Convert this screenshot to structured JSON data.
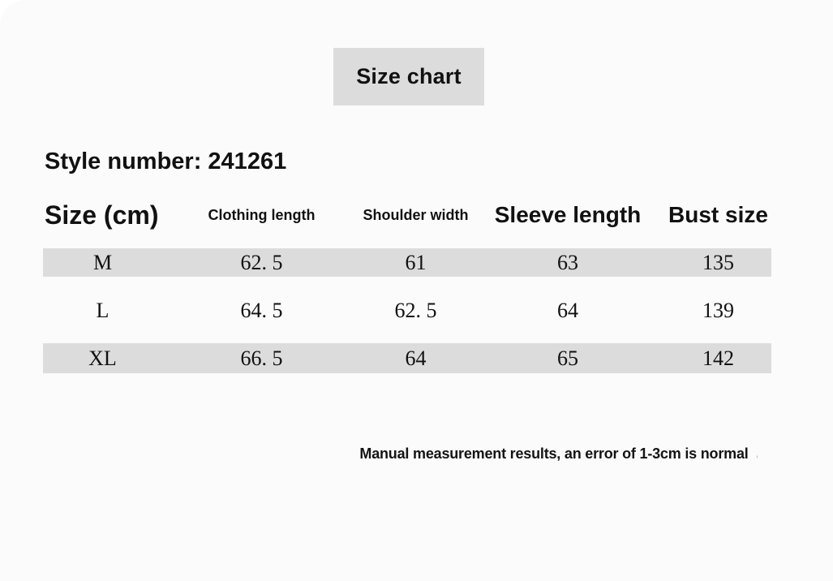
{
  "badge": {
    "label": "Size chart"
  },
  "heading": {
    "style_number": "Style number: 241261"
  },
  "table": {
    "headers": [
      "Size (cm)",
      "Clothing length",
      "Shoulder width",
      "Sleeve length",
      "Bust size"
    ],
    "rows": [
      {
        "cells": [
          "M",
          "62. 5",
          "61",
          "63",
          "135"
        ]
      },
      {
        "cells": [
          "L",
          "64. 5",
          "62. 5",
          "64",
          "139"
        ]
      },
      {
        "cells": [
          "XL",
          "66. 5",
          "64",
          "65",
          "142"
        ]
      }
    ]
  },
  "note": {
    "text": "Manual measurement results, an error of 1-3cm is normal",
    "trailing_mark": ","
  },
  "colors": {
    "page_background": "#fbfbfb",
    "badge_background": "#dcdcdc",
    "row_stripe": "#dcdcdc",
    "text": "#111111",
    "note_mark": "#bdbdbd"
  },
  "chart_data": {
    "type": "table",
    "title": "Size chart",
    "units": "cm",
    "columns": [
      "Size (cm)",
      "Clothing length",
      "Shoulder width",
      "Sleeve length",
      "Bust size"
    ],
    "rows": [
      [
        "M",
        62.5,
        61,
        63,
        135
      ],
      [
        "L",
        64.5,
        62.5,
        64,
        139
      ],
      [
        "XL",
        66.5,
        64,
        65,
        142
      ]
    ]
  }
}
